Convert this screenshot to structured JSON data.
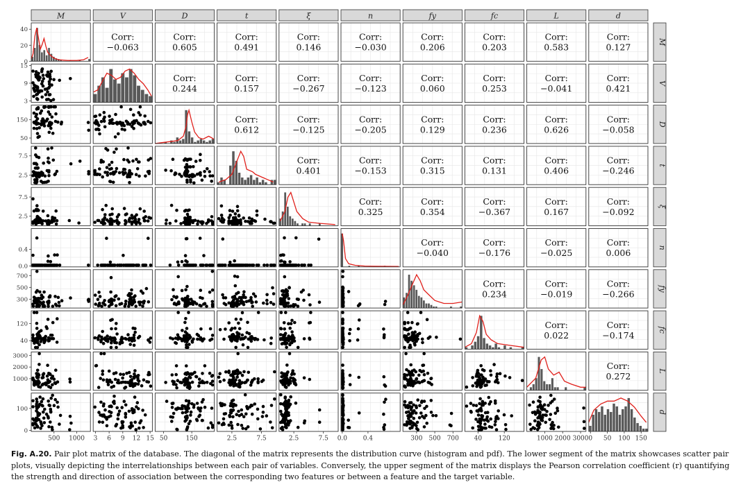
{
  "chart_data": {
    "type": "pair-plot-matrix",
    "variables": [
      {
        "key": "M",
        "label": "M",
        "range": [
          0,
          1300
        ],
        "ticks": [
          500,
          1000
        ],
        "yticks": [
          0,
          20,
          40
        ]
      },
      {
        "key": "V",
        "label": "V",
        "range": [
          2.5,
          15.5
        ],
        "ticks": [
          3,
          6,
          9,
          12,
          15
        ],
        "yticks": [
          3,
          9,
          15
        ]
      },
      {
        "key": "D",
        "label": "D",
        "range": [
          20,
          230
        ],
        "ticks": [
          50,
          150
        ],
        "yticks": [
          50,
          150
        ]
      },
      {
        "key": "t",
        "label": "t",
        "range": [
          0,
          10
        ],
        "ticks": [
          2.5,
          7.5
        ],
        "yticks": [
          2.5,
          7.5
        ]
      },
      {
        "key": "xi",
        "label": "ξ",
        "range": [
          0,
          10
        ],
        "ticks": [
          2.5,
          7.5
        ],
        "yticks": [
          2.5,
          7.5
        ]
      },
      {
        "key": "n",
        "label": "n",
        "range": [
          -0.02,
          0.9
        ],
        "ticks": [
          0.0,
          0.4
        ],
        "yticks": [
          0.0,
          0.4
        ]
      },
      {
        "key": "fy",
        "label": "fy",
        "range": [
          150,
          800
        ],
        "ticks": [
          300,
          500,
          700
        ],
        "yticks": [
          300,
          500,
          700
        ]
      },
      {
        "key": "fc",
        "label": "fc",
        "range": [
          0,
          180
        ],
        "ticks": [
          40,
          120
        ],
        "yticks": [
          40,
          120
        ]
      },
      {
        "key": "L",
        "label": "L",
        "range": [
          0,
          3300
        ],
        "ticks": [
          1000,
          2000,
          3000
        ],
        "yticks": [
          1000,
          2000,
          3000
        ]
      },
      {
        "key": "d",
        "label": "d",
        "range": [
          -5,
          170
        ],
        "ticks": [
          0,
          50,
          100,
          150
        ],
        "yticks": [
          0,
          100
        ]
      }
    ],
    "tick_text": {
      "x": [
        [
          "500",
          "1000"
        ],
        [
          "3",
          "6",
          "9",
          "12",
          "15"
        ],
        [
          "50",
          "150"
        ],
        [
          "2.5",
          "7.5"
        ],
        [
          "2.5",
          "7.5"
        ],
        [
          "0.0",
          "0.4"
        ],
        [
          "300",
          "500",
          "700"
        ],
        [
          "40",
          "120"
        ],
        [
          "1000",
          "2000",
          "3000"
        ],
        [
          "0",
          "50",
          "100",
          "150"
        ]
      ],
      "y": [
        [
          "0",
          "20",
          "40"
        ],
        [
          "3",
          "9",
          "15"
        ],
        [
          "50",
          "150"
        ],
        [
          "2.5",
          "7.5"
        ],
        [
          "2.5",
          "7.5"
        ],
        [
          "0.0",
          "0.4"
        ],
        [
          "300",
          "500",
          "700"
        ],
        [
          "40",
          "120"
        ],
        [
          "1000",
          "2000",
          "3000"
        ],
        [
          "0",
          "100"
        ]
      ]
    },
    "diagonal_histograms": [
      [
        6,
        18,
        45,
        22,
        12,
        15,
        8,
        18,
        10,
        6,
        4,
        3,
        2,
        0,
        0,
        0,
        1,
        0,
        0,
        0,
        1,
        0,
        0,
        0,
        3
      ],
      [
        4,
        8,
        12,
        7,
        16,
        11,
        9,
        14,
        12,
        16,
        13,
        8,
        6,
        4,
        3
      ],
      [
        0,
        0,
        0,
        1,
        0,
        2,
        1,
        4,
        2,
        3,
        22,
        8,
        4,
        1,
        2,
        3,
        2,
        1,
        2,
        3
      ],
      [
        1,
        3,
        2,
        0,
        8,
        14,
        10,
        5,
        3,
        2,
        3,
        4,
        2,
        3,
        1,
        2,
        1,
        0,
        2,
        2
      ],
      [
        3,
        6,
        14,
        8,
        4,
        3,
        2,
        1,
        0,
        1,
        1,
        0,
        1,
        0,
        0,
        0,
        1,
        0,
        0,
        0,
        0,
        0,
        0,
        0
      ],
      [
        30,
        0,
        0,
        1,
        0,
        0,
        0,
        1,
        0,
        0,
        0,
        0,
        0,
        0,
        0,
        0,
        0,
        0,
        1,
        0,
        0,
        0,
        0,
        0,
        0
      ],
      [
        7,
        10,
        22,
        18,
        15,
        12,
        8,
        7,
        5,
        3,
        3,
        2,
        1,
        1,
        0,
        0,
        0,
        0,
        0,
        1,
        0,
        0,
        0,
        1
      ],
      [
        1,
        0,
        2,
        4,
        7,
        18,
        6,
        3,
        2,
        1,
        3,
        1,
        0,
        2,
        0,
        1,
        0,
        0,
        0,
        1
      ],
      [
        0,
        1,
        2,
        4,
        11,
        7,
        3,
        2,
        2,
        4,
        1,
        1,
        0,
        0,
        1,
        0,
        0,
        0,
        0,
        0,
        0,
        1
      ],
      [
        2,
        6,
        8,
        7,
        9,
        6,
        8,
        7,
        10,
        9,
        6,
        8,
        9,
        12,
        8,
        5,
        3,
        2,
        1,
        1
      ]
    ],
    "diagonal_pdf": [
      [
        [
          0,
          3
        ],
        [
          40,
          10
        ],
        [
          80,
          33
        ],
        [
          120,
          44
        ],
        [
          160,
          30
        ],
        [
          200,
          16
        ],
        [
          240,
          22
        ],
        [
          280,
          30
        ],
        [
          320,
          20
        ],
        [
          360,
          12
        ],
        [
          420,
          8
        ],
        [
          500,
          4
        ],
        [
          600,
          2
        ],
        [
          800,
          1
        ],
        [
          1000,
          1
        ],
        [
          1150,
          2
        ],
        [
          1250,
          5
        ]
      ],
      [
        [
          2.6,
          5
        ],
        [
          3.5,
          6
        ],
        [
          4.5,
          10
        ],
        [
          5.5,
          14
        ],
        [
          6.5,
          13
        ],
        [
          7.5,
          11
        ],
        [
          8.5,
          12
        ],
        [
          9.5,
          15
        ],
        [
          10.5,
          16
        ],
        [
          11.5,
          14
        ],
        [
          12.5,
          11
        ],
        [
          13.5,
          9
        ],
        [
          14.5,
          6
        ],
        [
          15.3,
          3
        ]
      ],
      [
        [
          20,
          0
        ],
        [
          60,
          1
        ],
        [
          100,
          2
        ],
        [
          120,
          5
        ],
        [
          130,
          12
        ],
        [
          135,
          20
        ],
        [
          140,
          23
        ],
        [
          150,
          15
        ],
        [
          160,
          8
        ],
        [
          175,
          4
        ],
        [
          190,
          3
        ],
        [
          200,
          4
        ],
        [
          210,
          5
        ],
        [
          220,
          4
        ],
        [
          228,
          3
        ]
      ],
      [
        [
          0.3,
          1
        ],
        [
          1.5,
          2
        ],
        [
          2.5,
          4
        ],
        [
          3.5,
          10
        ],
        [
          4.0,
          13
        ],
        [
          4.5,
          11
        ],
        [
          5.0,
          6
        ],
        [
          6.0,
          5
        ],
        [
          6.5,
          4
        ],
        [
          7.5,
          3
        ],
        [
          8.5,
          2
        ],
        [
          9.5,
          1
        ]
      ],
      [
        [
          0.2,
          2
        ],
        [
          1.0,
          6
        ],
        [
          1.5,
          12
        ],
        [
          2.0,
          14
        ],
        [
          2.5,
          10
        ],
        [
          3.0,
          6
        ],
        [
          4.0,
          3
        ],
        [
          5.0,
          1.5
        ],
        [
          7.0,
          1
        ],
        [
          9.5,
          0.5
        ]
      ],
      [
        [
          0.0,
          32
        ],
        [
          0.02,
          25
        ],
        [
          0.05,
          8
        ],
        [
          0.1,
          3
        ],
        [
          0.2,
          1.5
        ],
        [
          0.35,
          0.8
        ],
        [
          0.5,
          0.6
        ],
        [
          0.7,
          0.5
        ],
        [
          0.88,
          0.4
        ]
      ],
      [
        [
          150,
          2
        ],
        [
          200,
          8
        ],
        [
          250,
          15
        ],
        [
          300,
          22
        ],
        [
          340,
          18
        ],
        [
          380,
          12
        ],
        [
          430,
          9
        ],
        [
          500,
          5
        ],
        [
          600,
          3
        ],
        [
          700,
          3
        ],
        [
          800,
          4
        ]
      ],
      [
        [
          0,
          1
        ],
        [
          20,
          3
        ],
        [
          35,
          9
        ],
        [
          45,
          18
        ],
        [
          55,
          15
        ],
        [
          65,
          8
        ],
        [
          80,
          5
        ],
        [
          100,
          3
        ],
        [
          140,
          2
        ],
        [
          180,
          1
        ]
      ],
      [
        [
          0,
          1
        ],
        [
          500,
          4
        ],
        [
          800,
          10
        ],
        [
          1000,
          11
        ],
        [
          1200,
          7
        ],
        [
          1500,
          5
        ],
        [
          1800,
          6
        ],
        [
          2100,
          3
        ],
        [
          2500,
          2
        ],
        [
          3000,
          1
        ],
        [
          3300,
          1
        ]
      ],
      [
        [
          -5,
          3
        ],
        [
          10,
          7
        ],
        [
          30,
          9
        ],
        [
          50,
          10
        ],
        [
          70,
          10
        ],
        [
          90,
          11
        ],
        [
          110,
          10
        ],
        [
          130,
          8
        ],
        [
          150,
          5
        ],
        [
          165,
          3
        ]
      ]
    ],
    "correlations": [
      [
        "",
        "-0.063",
        "0.605",
        "0.491",
        "0.146",
        "-0.030",
        "0.206",
        "0.203",
        "0.583",
        "0.127"
      ],
      [
        "",
        "",
        "0.244",
        "0.157",
        "-0.267",
        "-0.123",
        "0.060",
        "0.253",
        "-0.041",
        "0.421"
      ],
      [
        "",
        "",
        "",
        "0.612",
        "-0.125",
        "-0.205",
        "0.129",
        "0.236",
        "0.626",
        "-0.058"
      ],
      [
        "",
        "",
        "",
        "",
        "0.401",
        "-0.153",
        "0.315",
        "0.131",
        "0.406",
        "-0.246"
      ],
      [
        "",
        "",
        "",
        "",
        "",
        "0.325",
        "0.354",
        "-0.367",
        "0.167",
        "-0.092"
      ],
      [
        "",
        "",
        "",
        "",
        "",
        "",
        "-0.040",
        "-0.176",
        "-0.025",
        "0.006"
      ],
      [
        "",
        "",
        "",
        "",
        "",
        "",
        "",
        "0.234",
        "-0.019",
        "-0.266"
      ],
      [
        "",
        "",
        "",
        "",
        "",
        "",
        "",
        "",
        "0.022",
        "-0.174"
      ],
      [
        "",
        "",
        "",
        "",
        "",
        "",
        "",
        "",
        "",
        "0.272"
      ],
      [
        "",
        "",
        "",
        "",
        "",
        "",
        "",
        "",
        "",
        ""
      ]
    ],
    "corr_label": "Corr:",
    "lower_panels": "scatter",
    "upper_panels": "pearson-correlation",
    "diagonal_panels": "histogram-and-pdf",
    "colors": {
      "points": "#000000",
      "hist": "#595959",
      "pdf": "#e0201b",
      "strip": "#d9d9d9",
      "border": "#333333",
      "grid": "#e6e6e6"
    }
  },
  "caption": {
    "label": "Fig. A.20.",
    "text": " Pair plot matrix of the database. The diagonal of the matrix represents the distribution curve (histogram and pdf). The lower segment of the matrix showcases scatter pair plots, visually depicting the interrelationships between each pair of variables. Conversely, the upper segment of the matrix displays the Pearson correlation coefficient (r) quantifying the strength and direction of association between the corresponding two features or between a feature and the target variable."
  }
}
